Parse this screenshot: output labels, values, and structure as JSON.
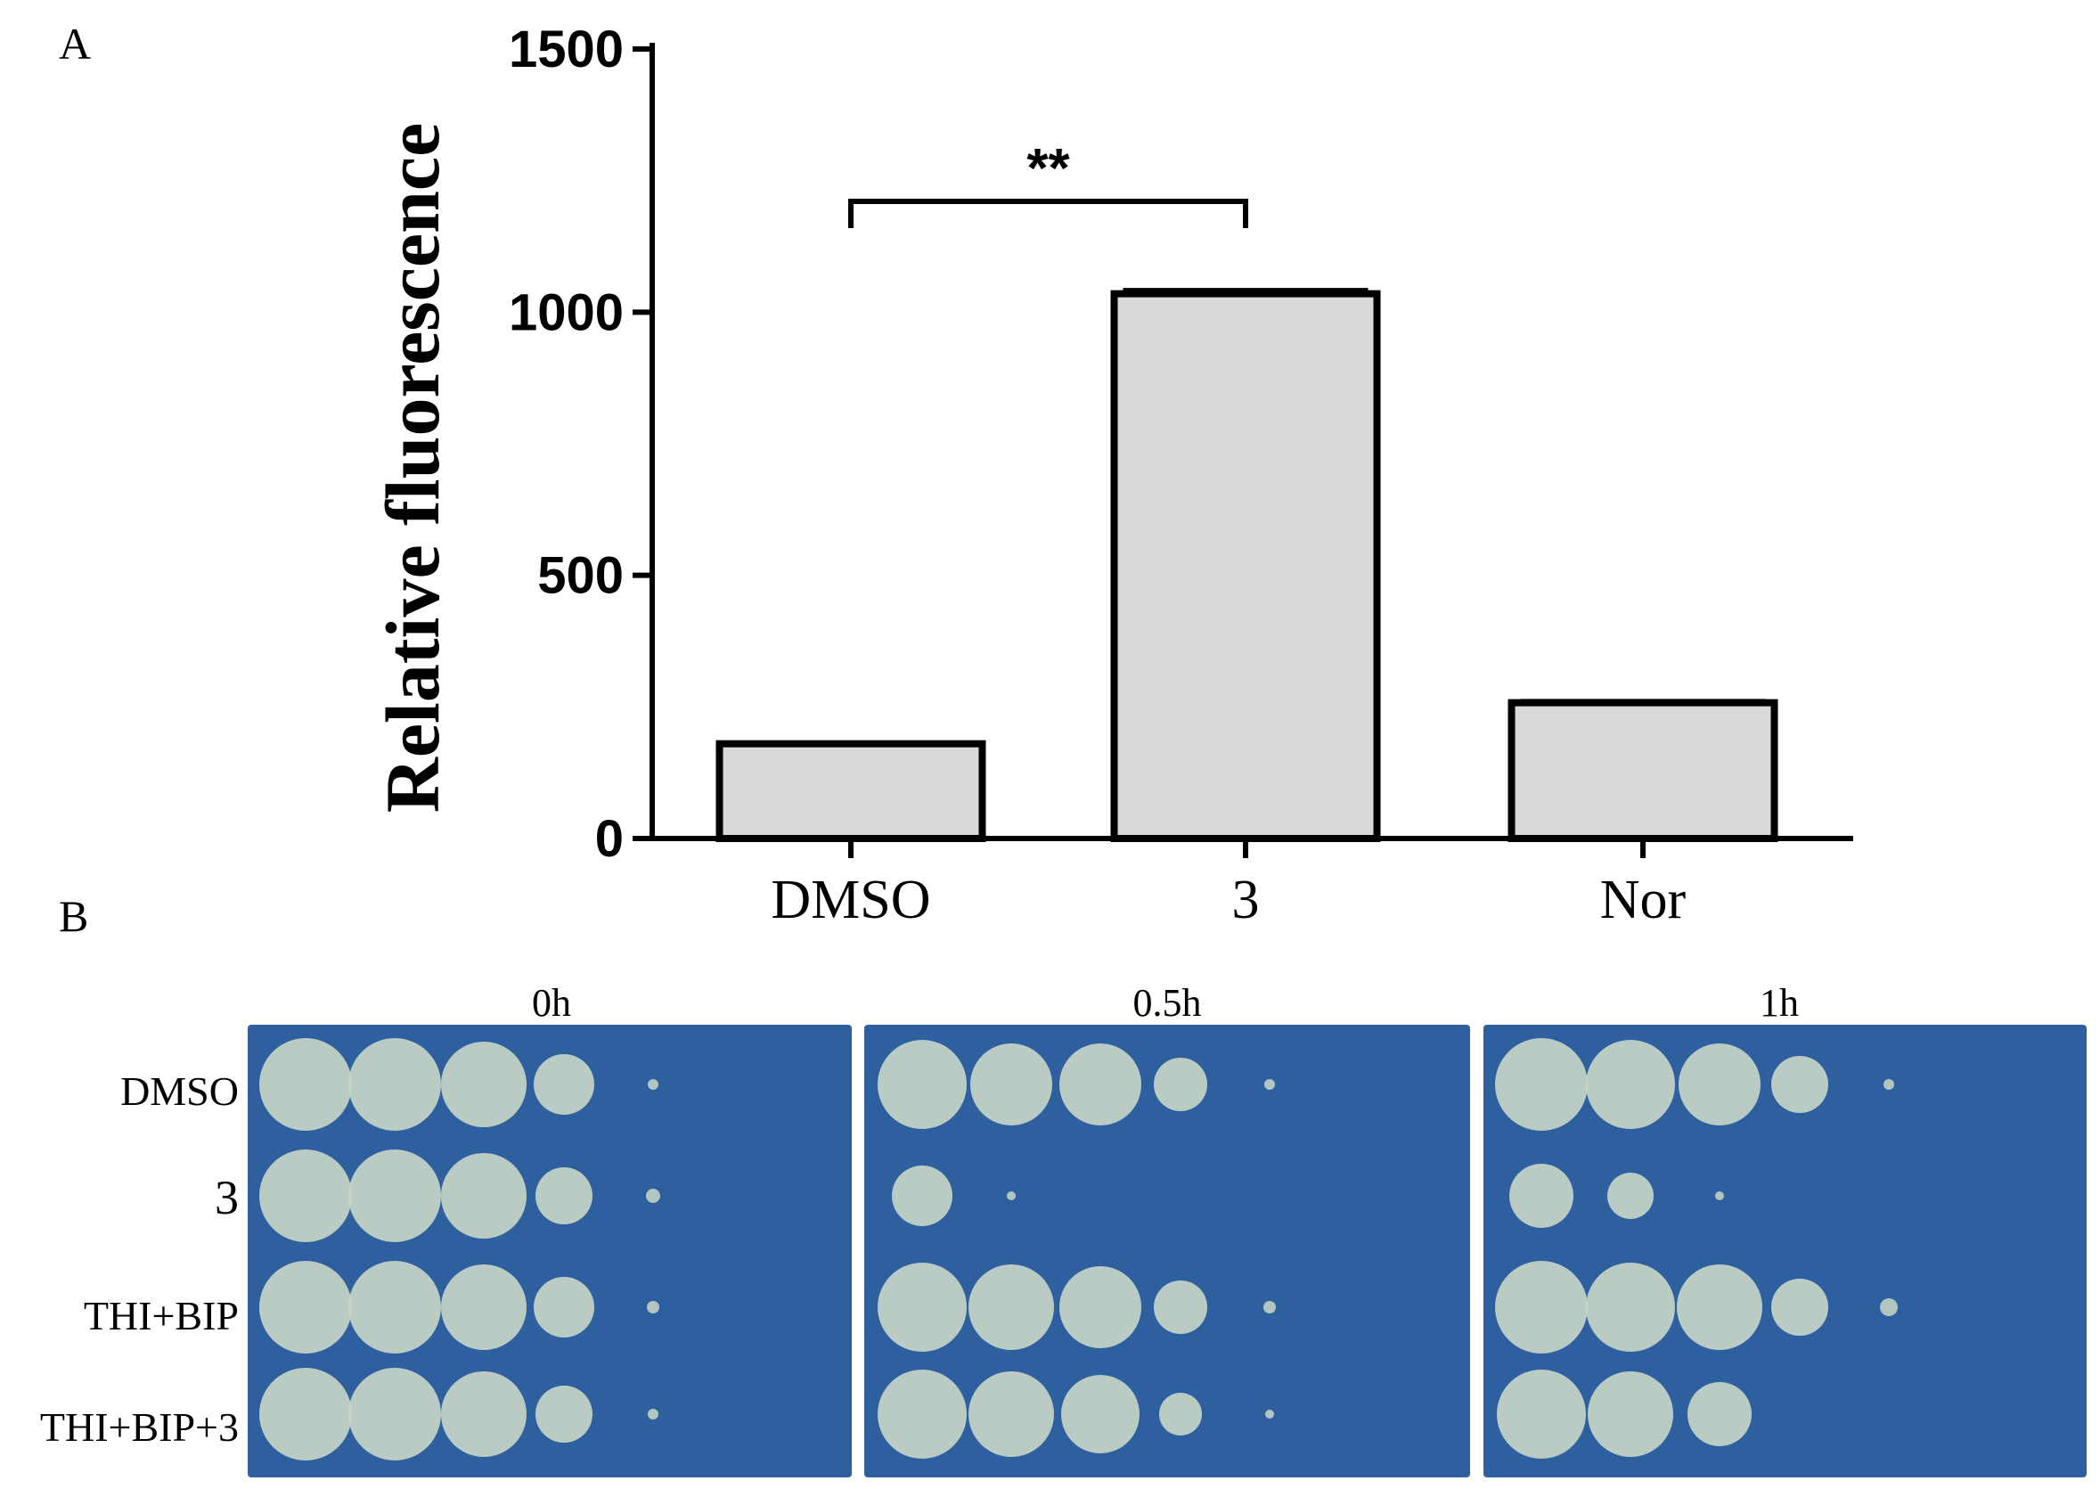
{
  "panel_a": {
    "letter": "A"
  },
  "panel_b": {
    "letter": "B"
  },
  "chart_data": {
    "type": "bar",
    "ylabel": "Relative fluorescence",
    "xlabel": "",
    "ylim": [
      0,
      1500
    ],
    "yticks": [
      "0",
      "500",
      "1000",
      "1500"
    ],
    "categories": [
      "DMSO",
      "3",
      "Nor"
    ],
    "values": [
      180,
      1035,
      258
    ],
    "error_bars": [
      0,
      6,
      2
    ],
    "significance": {
      "label": "**",
      "between": [
        "DMSO",
        "3"
      ]
    },
    "grid": false,
    "legend": "none"
  },
  "plates": {
    "titles": [
      "0h",
      "0.5h",
      "1h"
    ],
    "rows": [
      "DMSO",
      "3",
      "THI+BIP",
      "THI+BIP+3"
    ],
    "background_color": "#2e5f9e",
    "colony_color": "#c9d7c6"
  }
}
